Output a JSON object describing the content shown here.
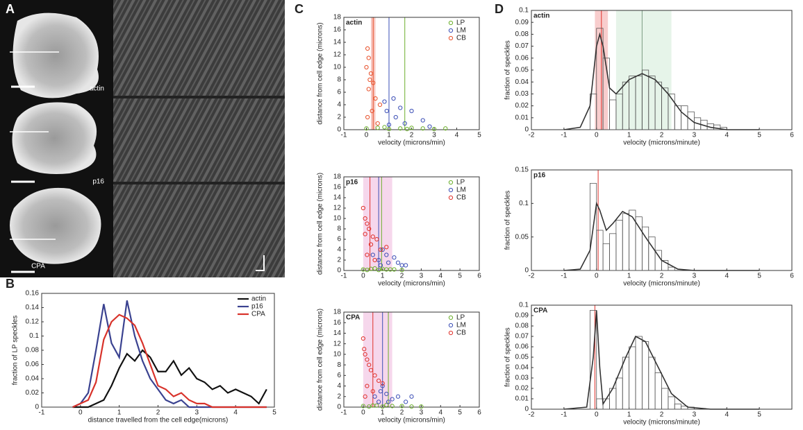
{
  "figure": {
    "panel_labels": [
      "A",
      "B",
      "C",
      "D"
    ],
    "image_labels": [
      "actin",
      "p16",
      "CPA"
    ]
  },
  "chart_data": [
    {
      "type": "line",
      "xlabel": "distance travelled from the cell edge(microns)",
      "ylabel": "fraction of LP speckles",
      "xlim": [
        -1,
        5
      ],
      "xticks": [
        -1,
        0,
        1,
        2,
        3,
        4,
        5
      ],
      "ylim": [
        0,
        0.16
      ],
      "yticks": [
        0,
        0.02,
        0.04,
        0.06,
        0.08,
        0.1,
        0.12,
        0.14,
        0.16
      ],
      "legend": "upper right",
      "x": [
        -0.2,
        0,
        0.2,
        0.4,
        0.6,
        0.8,
        1.0,
        1.2,
        1.4,
        1.6,
        1.8,
        2.0,
        2.2,
        2.4,
        2.6,
        2.8,
        3.0,
        3.2,
        3.4,
        3.6,
        3.8,
        4.0,
        4.2,
        4.4,
        4.6,
        4.8
      ],
      "series": [
        {
          "name": "actin",
          "color": "#111111",
          "values": [
            0,
            0,
            0,
            0.005,
            0.01,
            0.03,
            0.055,
            0.075,
            0.065,
            0.08,
            0.07,
            0.05,
            0.05,
            0.065,
            0.045,
            0.055,
            0.04,
            0.035,
            0.025,
            0.03,
            0.02,
            0.025,
            0.02,
            0.015,
            0.005,
            0.025
          ]
        },
        {
          "name": "p16",
          "color": "#3a4290",
          "values": [
            0,
            0.005,
            0.02,
            0.08,
            0.145,
            0.09,
            0.07,
            0.15,
            0.1,
            0.065,
            0.04,
            0.025,
            0.01,
            0.005,
            0.01,
            0,
            0,
            0,
            0,
            0,
            0,
            0,
            0,
            0,
            0,
            0
          ]
        },
        {
          "name": "CPA",
          "color": "#d8322a",
          "values": [
            0,
            0.005,
            0.01,
            0.035,
            0.095,
            0.12,
            0.13,
            0.125,
            0.115,
            0.09,
            0.06,
            0.03,
            0.025,
            0.015,
            0.02,
            0.01,
            0.005,
            0.005,
            0,
            0,
            0,
            0,
            0,
            0,
            0,
            0
          ]
        }
      ]
    },
    {
      "type": "scatter",
      "title": "actin",
      "xlabel": "velocity (microns/min)",
      "ylabel": "distance from cell edge (microns)",
      "xlim": [
        -1,
        5
      ],
      "xticks": [
        -1,
        0,
        1,
        2,
        3,
        4,
        5
      ],
      "ylim": [
        0,
        18
      ],
      "yticks": [
        0,
        2,
        4,
        6,
        8,
        10,
        12,
        14,
        16,
        18
      ],
      "legend": "upper right",
      "bands": [
        {
          "range": [
            0.2,
            0.4
          ],
          "color": "#f3b0a8"
        }
      ],
      "vlines": [
        {
          "x": 0.3,
          "color": "#e8502a"
        },
        {
          "x": 1.0,
          "color": "#3a4db5"
        },
        {
          "x": 1.7,
          "color": "#6aae2a"
        }
      ],
      "series": [
        {
          "name": "LP",
          "color": "#6aae2a",
          "x": [
            0,
            0.5,
            1,
            1.5,
            2,
            2.5,
            3,
            3.5,
            0.8,
            1.8
          ],
          "values": [
            0.2,
            0.3,
            0.1,
            0.2,
            0.3,
            0.2,
            0.1,
            0.2,
            0.4,
            0.1
          ]
        },
        {
          "name": "LM",
          "color": "#3a4db5",
          "x": [
            0.8,
            1.2,
            1.5,
            0.9,
            2.0,
            1.3,
            2.5,
            1.7,
            1.0,
            2.8
          ],
          "values": [
            4.5,
            5,
            3.5,
            3,
            3,
            2,
            1.5,
            1,
            0.8,
            0.5
          ]
        },
        {
          "name": "CB",
          "color": "#e8502a",
          "x": [
            0.05,
            0.1,
            0,
            0.2,
            0.15,
            0.3,
            0.1,
            0.4,
            0.6,
            0.25,
            0.05,
            0.5
          ],
          "values": [
            13,
            11.5,
            10,
            9,
            8,
            7.5,
            6.5,
            5,
            4,
            3,
            2,
            1
          ]
        }
      ]
    },
    {
      "type": "scatter",
      "title": "p16",
      "xlabel": "velocity (microns/min)",
      "ylabel": "distance from cell edge (microns)",
      "xlim": [
        -1,
        6
      ],
      "xticks": [
        -1,
        0,
        1,
        2,
        3,
        4,
        5,
        6
      ],
      "ylim": [
        0,
        18
      ],
      "yticks": [
        0,
        2,
        4,
        6,
        8,
        10,
        12,
        14,
        16,
        18
      ],
      "legend": "upper right",
      "bands": [
        {
          "range": [
            0,
            1.5
          ],
          "color": "#f2c6e4"
        }
      ],
      "vlines": [
        {
          "x": 0.35,
          "color": "#e0302a"
        },
        {
          "x": 0.8,
          "color": "#3a4db5"
        },
        {
          "x": 0.95,
          "color": "#6aae2a"
        }
      ],
      "series": [
        {
          "name": "LP",
          "color": "#6aae2a",
          "x": [
            0,
            0.4,
            0.8,
            1.2,
            1.6,
            2.0,
            0.6,
            1.0,
            1.4,
            0.2
          ],
          "values": [
            0.2,
            0.3,
            0.1,
            0.2,
            0.2,
            0.1,
            0.4,
            0.3,
            0.2,
            0.1
          ]
        },
        {
          "name": "LM",
          "color": "#3a4db5",
          "x": [
            0.5,
            0.8,
            1.0,
            1.3,
            1.6,
            2.0,
            2.2,
            0.9,
            1.2,
            1.8
          ],
          "values": [
            3,
            2,
            4,
            1.5,
            2.5,
            1,
            1,
            1,
            3,
            1.5
          ]
        },
        {
          "name": "CB",
          "color": "#e0302a",
          "x": [
            0,
            0.1,
            0.2,
            0.3,
            0.1,
            0.5,
            0.7,
            0.4,
            0.9,
            0.2,
            1.2,
            0.6
          ],
          "values": [
            12,
            10,
            9,
            8,
            7,
            6.5,
            6,
            5,
            4,
            3,
            4.5,
            2
          ]
        }
      ]
    },
    {
      "type": "scatter",
      "title": "CPA",
      "xlabel": "velocity (microns/min)",
      "ylabel": "distance from cell edge (microns)",
      "xlim": [
        -1,
        6
      ],
      "xticks": [
        -1,
        0,
        1,
        2,
        3,
        4,
        5,
        6
      ],
      "ylim": [
        0,
        18
      ],
      "yticks": [
        0,
        2,
        4,
        6,
        8,
        10,
        12,
        14,
        16,
        18
      ],
      "legend": "upper right",
      "bands": [
        {
          "range": [
            0,
            1.5
          ],
          "color": "#f2c6e4"
        }
      ],
      "vlines": [
        {
          "x": 0.5,
          "color": "#e0302a"
        },
        {
          "x": 1.0,
          "color": "#3a4db5"
        },
        {
          "x": 1.3,
          "color": "#6aae2a"
        }
      ],
      "series": [
        {
          "name": "LP",
          "color": "#6aae2a",
          "x": [
            0,
            0.5,
            1,
            1.5,
            2,
            2.5,
            3,
            0.7,
            1.2,
            0.3
          ],
          "values": [
            0.2,
            0.3,
            0.1,
            0.2,
            0.2,
            0.1,
            0.1,
            0.3,
            0.4,
            0.1
          ]
        },
        {
          "name": "LM",
          "color": "#3a4db5",
          "x": [
            0.6,
            0.9,
            1.2,
            1.5,
            1.8,
            2.2,
            2.5,
            1.0,
            1.3,
            0.8
          ],
          "values": [
            2,
            3,
            2.5,
            1.5,
            2,
            1,
            2,
            4,
            1,
            1
          ]
        },
        {
          "name": "CB",
          "color": "#e0302a",
          "x": [
            0,
            0.05,
            0.1,
            0.2,
            0.3,
            0.4,
            0.6,
            0.8,
            0.2,
            1.0,
            0.1,
            0.5
          ],
          "values": [
            13,
            11,
            10,
            9,
            8,
            7,
            6,
            5,
            4,
            4.5,
            2,
            3
          ]
        }
      ]
    },
    {
      "type": "histogram",
      "title": "actin",
      "xlabel": "velocity (microns/minute)",
      "ylabel": "fraction of speckles",
      "xlim": [
        -2,
        6
      ],
      "xticks": [
        -2,
        -1,
        0,
        1,
        2,
        3,
        4,
        5,
        6
      ],
      "ylim": [
        0,
        0.1
      ],
      "yticks": [
        0,
        0.01,
        0.02,
        0.03,
        0.04,
        0.05,
        0.06,
        0.07,
        0.08,
        0.09,
        0.1
      ],
      "bands": [
        {
          "range": [
            -0.05,
            0.35
          ],
          "color": "#f5b8b8"
        },
        {
          "range": [
            0.6,
            2.3
          ],
          "color": "#dcefe0"
        }
      ],
      "vlines": [
        {
          "x": 0.15,
          "color": "#e0302a"
        },
        {
          "x": 1.4,
          "color": "#7a9a80"
        }
      ],
      "bins": [
        -0.4,
        -0.2,
        0,
        0.2,
        0.4,
        0.6,
        0.8,
        1.0,
        1.2,
        1.4,
        1.6,
        1.8,
        2.0,
        2.2,
        2.4,
        2.6,
        2.8,
        3.0,
        3.2,
        3.4,
        3.6,
        3.8,
        4.0
      ],
      "values": [
        0,
        0.03,
        0.085,
        0.06,
        0.025,
        0.03,
        0.04,
        0.045,
        0.045,
        0.05,
        0.045,
        0.04,
        0.035,
        0.03,
        0.02,
        0.02,
        0.015,
        0.01,
        0.008,
        0.005,
        0.004,
        0.002
      ],
      "fit": {
        "color": "#333333",
        "x": [
          -1,
          -0.5,
          -0.2,
          0,
          0.1,
          0.2,
          0.4,
          0.6,
          1.0,
          1.4,
          1.8,
          2.2,
          2.6,
          3,
          3.5,
          4,
          5
        ],
        "values": [
          0,
          0.002,
          0.02,
          0.07,
          0.08,
          0.07,
          0.035,
          0.03,
          0.042,
          0.047,
          0.042,
          0.03,
          0.015,
          0.006,
          0.002,
          0,
          0
        ]
      }
    },
    {
      "type": "histogram",
      "title": "p16",
      "xlabel": "velocity (microns/minute)",
      "ylabel": "fraction of speckles",
      "xlim": [
        -2,
        6
      ],
      "xticks": [
        -2,
        -1,
        0,
        1,
        2,
        3,
        4,
        5,
        6
      ],
      "ylim": [
        0,
        0.15
      ],
      "yticks": [
        0,
        0.05,
        0.1,
        0.15
      ],
      "bands": [],
      "vlines": [
        {
          "x": 0.05,
          "color": "#e0302a"
        }
      ],
      "bins": [
        -0.4,
        -0.2,
        0,
        0.2,
        0.4,
        0.6,
        0.8,
        1.0,
        1.2,
        1.4,
        1.6,
        1.8,
        2.0,
        2.2,
        2.4,
        2.6,
        2.8,
        3.0,
        3.2,
        3.4,
        3.6,
        3.8,
        4.0
      ],
      "values": [
        0,
        0.13,
        0.06,
        0.04,
        0.055,
        0.075,
        0.085,
        0.09,
        0.08,
        0.065,
        0.05,
        0.03,
        0.015,
        0.005,
        0,
        0,
        0,
        0,
        0,
        0,
        0,
        0
      ],
      "fit": {
        "color": "#333333",
        "x": [
          -1,
          -0.5,
          -0.2,
          0,
          0.1,
          0.3,
          0.5,
          0.8,
          1.1,
          1.5,
          2,
          2.5,
          3,
          4,
          5
        ],
        "values": [
          0,
          0.002,
          0.03,
          0.1,
          0.09,
          0.06,
          0.07,
          0.088,
          0.08,
          0.05,
          0.015,
          0.002,
          0,
          0,
          0
        ]
      }
    },
    {
      "type": "histogram",
      "title": "CPA",
      "xlabel": "velocity (microns/minute)",
      "ylabel": "fraction of speckles",
      "xlim": [
        -2,
        6
      ],
      "xticks": [
        -2,
        -1,
        0,
        1,
        2,
        3,
        4,
        5
      ],
      "ylim": [
        0,
        0.1
      ],
      "yticks": [
        0,
        0.01,
        0.02,
        0.03,
        0.04,
        0.05,
        0.06,
        0.07,
        0.08,
        0.09,
        0.1
      ],
      "bands": [],
      "vlines": [
        {
          "x": -0.05,
          "color": "#e0302a"
        }
      ],
      "bins": [
        -0.4,
        -0.2,
        0,
        0.2,
        0.4,
        0.6,
        0.8,
        1.0,
        1.2,
        1.4,
        1.6,
        1.8,
        2.0,
        2.2,
        2.4,
        2.6,
        2.8,
        3.0,
        3.2,
        3.4,
        3.6,
        3.8,
        4.0
      ],
      "values": [
        0,
        0.095,
        0.01,
        0.01,
        0.02,
        0.03,
        0.05,
        0.06,
        0.07,
        0.065,
        0.05,
        0.035,
        0.02,
        0.012,
        0.005,
        0.003,
        0.002,
        0,
        0,
        0,
        0,
        0
      ],
      "fit": {
        "color": "#333333",
        "x": [
          -1,
          -0.3,
          -0.1,
          0,
          0.1,
          0.2,
          0.5,
          0.9,
          1.2,
          1.5,
          1.9,
          2.3,
          2.8,
          3.5,
          5
        ],
        "values": [
          0,
          0.002,
          0.05,
          0.095,
          0.04,
          0.005,
          0.02,
          0.05,
          0.07,
          0.065,
          0.04,
          0.015,
          0.002,
          0,
          0
        ]
      }
    }
  ]
}
